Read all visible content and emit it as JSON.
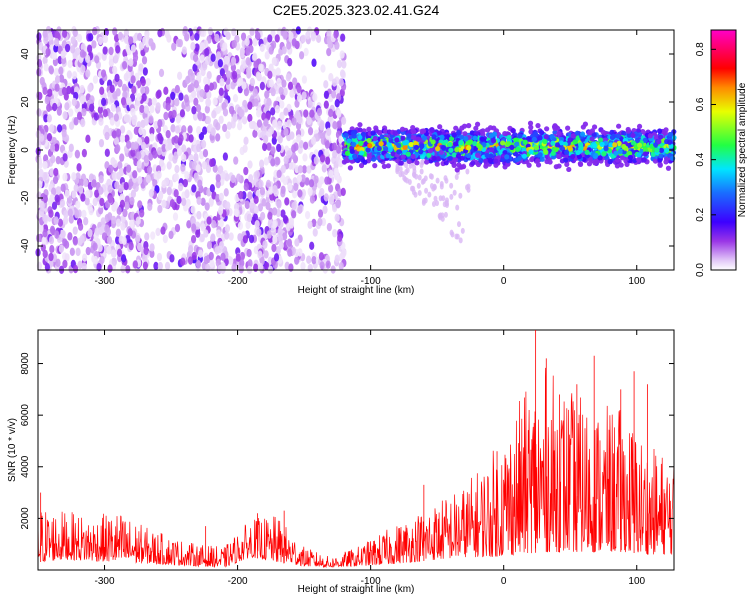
{
  "title": "C2E5.2025.323.02.41.G24",
  "chart_data": [
    {
      "type": "heatmap",
      "xlabel": "Height of straight line (km)",
      "ylabel": "Frequency (Hz)",
      "xlim": [
        -350,
        128
      ],
      "ylim": [
        -50,
        50
      ],
      "xticks": [
        -300,
        -200,
        -100,
        0,
        100
      ],
      "yticks": [
        -40,
        -20,
        0,
        20,
        40
      ],
      "colorbar": {
        "label": "Normalized spectral amplitude",
        "range": [
          0,
          0.87
        ],
        "ticks": [
          "0.0",
          "0.2",
          "0.4",
          "0.6",
          "0.8"
        ],
        "colormap": "white-purple-blue-cyan-green-yellow-red-magenta"
      },
      "regions": [
        {
          "x_from": -350,
          "x_to": -120,
          "pattern": "broadband noise filling all frequencies",
          "level": 0.1
        },
        {
          "x_from": -120,
          "x_to": 128,
          "pattern": "narrow band centred near 0 Hz, width about +/-8 Hz",
          "level": 0.45
        },
        {
          "x_from": -80,
          "x_to": -25,
          "pattern": "faint tail towards negative frequencies down to about -40 Hz",
          "level": 0.05
        }
      ]
    },
    {
      "type": "line",
      "xlabel": "Height of straight line (km)",
      "ylabel": "SNR (10 * v/v)",
      "xlim": [
        -350,
        128
      ],
      "ylim": [
        0,
        9300
      ],
      "xticks": [
        -300,
        -200,
        -100,
        0,
        100
      ],
      "yticks": [
        2000,
        4000,
        6000,
        8000
      ],
      "series": [
        {
          "color": "#ff0000",
          "envelope_x": [
            -350,
            -330,
            -310,
            -290,
            -270,
            -250,
            -230,
            -210,
            -190,
            -170,
            -150,
            -130,
            -110,
            -90,
            -70,
            -50,
            -30,
            -10,
            10,
            30,
            50,
            70,
            90,
            110,
            128
          ],
          "envelope_low": [
            300,
            400,
            350,
            300,
            250,
            200,
            150,
            100,
            500,
            300,
            150,
            100,
            150,
            200,
            300,
            400,
            500,
            500,
            600,
            700,
            700,
            700,
            700,
            600,
            600
          ],
          "envelope_high": [
            2500,
            2300,
            2100,
            2300,
            1700,
            1300,
            1000,
            900,
            2000,
            2100,
            900,
            500,
            900,
            1500,
            2100,
            2700,
            3300,
            4500,
            6500,
            8000,
            7000,
            6400,
            6300,
            4800,
            4500
          ],
          "peaks": [
            [
              -348,
              3000
            ],
            [
              -224,
              1700
            ],
            [
              -185,
              2200
            ],
            [
              -165,
              2300
            ],
            [
              -5,
              4600
            ],
            [
              -60,
              3300
            ],
            [
              24,
              9300
            ],
            [
              32,
              8200
            ],
            [
              42,
              6800
            ],
            [
              55,
              7200
            ],
            [
              68,
              8300
            ],
            [
              88,
              7000
            ],
            [
              98,
              7700
            ],
            [
              108,
              7200
            ]
          ]
        }
      ]
    }
  ]
}
